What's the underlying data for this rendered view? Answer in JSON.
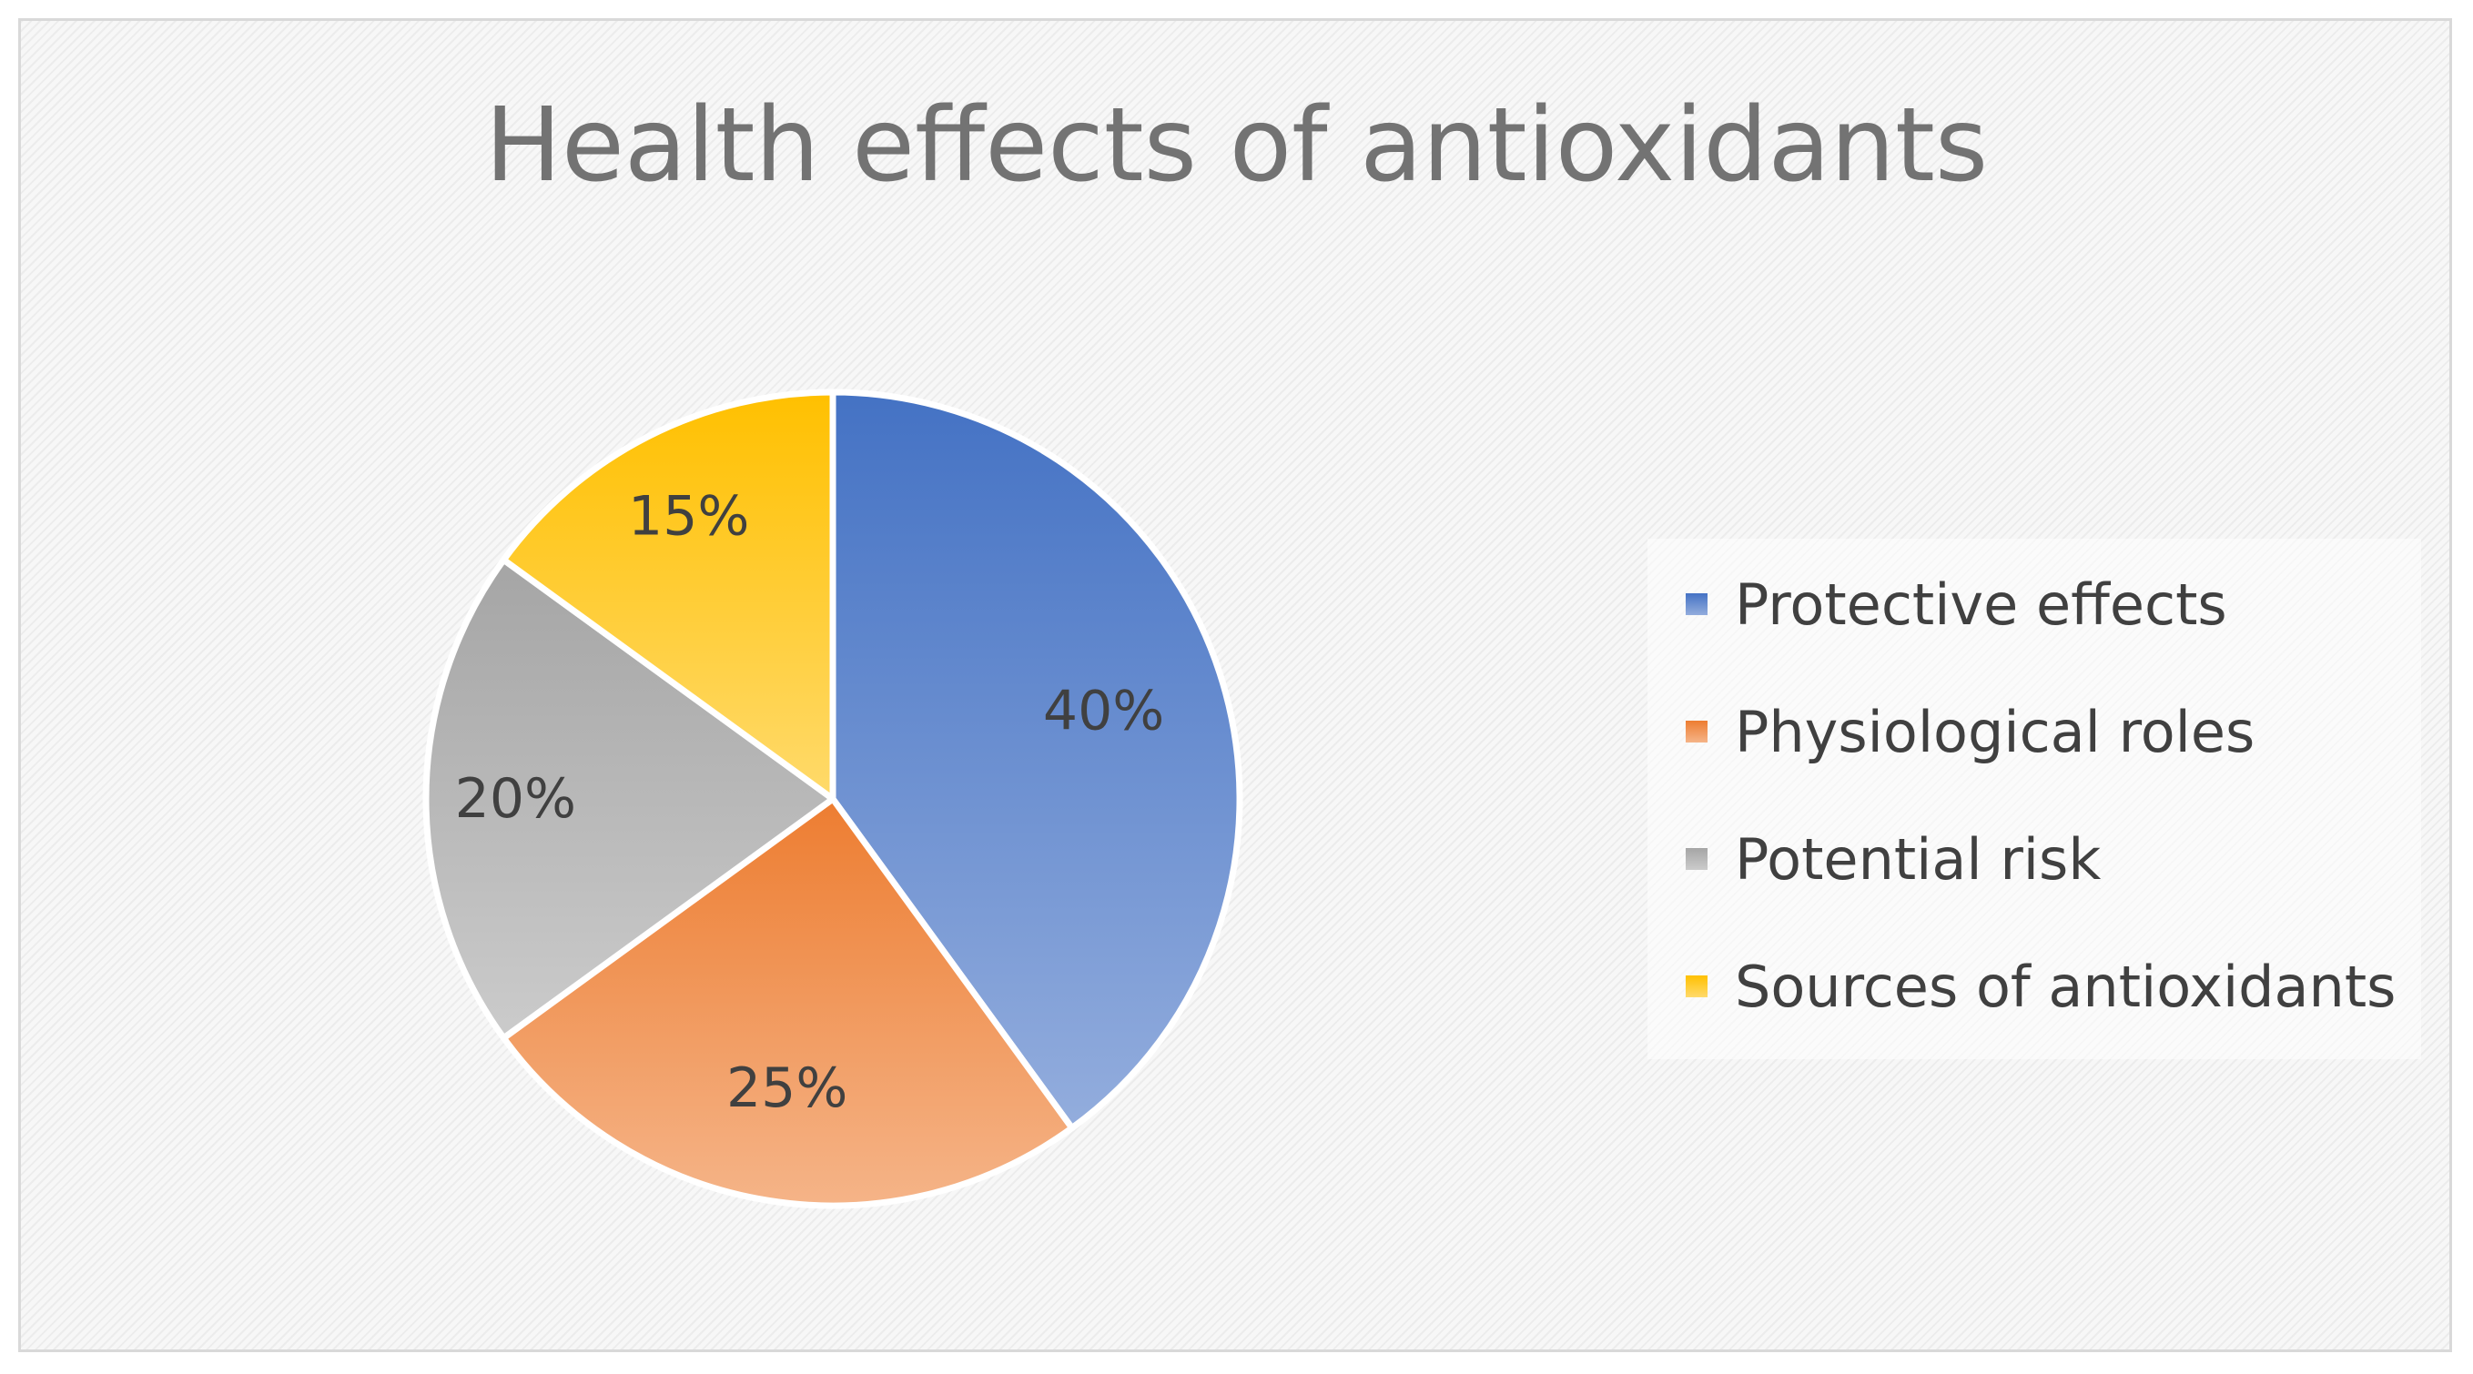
{
  "chart_data": {
    "type": "pie",
    "title": "Health effects of antioxidants",
    "categories": [
      "Protective effects",
      "Physiological roles",
      "Potential risk",
      "Sources of antioxidants"
    ],
    "values": [
      40,
      25,
      20,
      15
    ],
    "labels": [
      "40%",
      "25%",
      "20%",
      "15%"
    ],
    "colors": [
      "#4472c4",
      "#ed7d31",
      "#a5a5a5",
      "#ffc000"
    ],
    "legend": "right",
    "start_angle": "12 o'clock",
    "direction": "clockwise"
  }
}
